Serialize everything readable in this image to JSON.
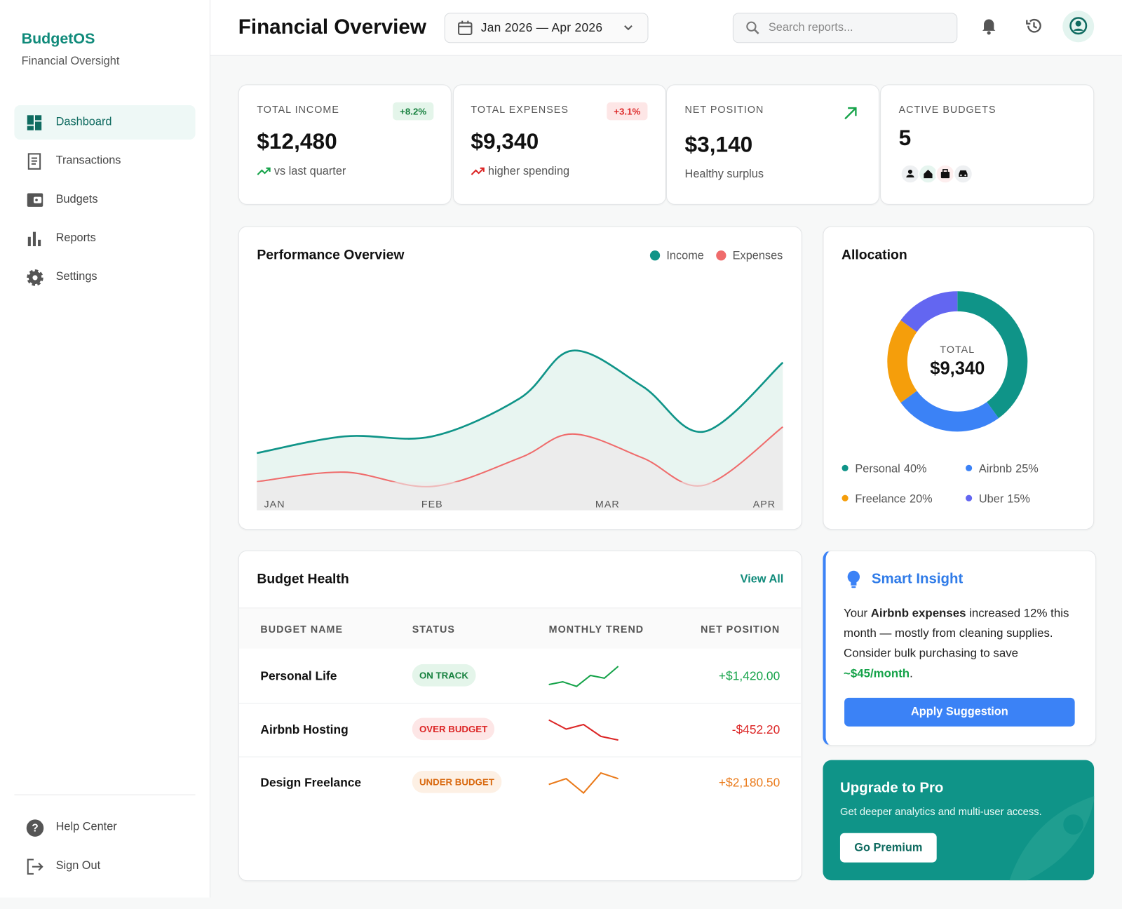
{
  "sidebar": {
    "brand": "BudgetOS",
    "tagline": "Financial Oversight",
    "nav": [
      "Dashboard",
      "Transactions",
      "Budgets",
      "Reports",
      "Settings"
    ],
    "footer_nav": [
      "Help Center",
      "Sign Out"
    ]
  },
  "header": {
    "title": "Financial Overview",
    "date_range": "Jan 2026 — Apr 2026",
    "search_placeholder": "Search reports..."
  },
  "kpis": [
    {
      "label": "TOTAL INCOME",
      "value": "$12,480",
      "badge": "+8.2%",
      "note": "vs last quarter"
    },
    {
      "label": "TOTAL EXPENSES",
      "value": "$9,340",
      "badge": "+3.1%",
      "note": "higher spending"
    },
    {
      "label": "NET POSITION",
      "value": "$3,140",
      "note": "Healthy surplus"
    },
    {
      "label": "ACTIVE BUDGETS",
      "value": "5"
    }
  ],
  "chart_data": [
    {
      "type": "area",
      "title": "Performance Overview",
      "x": [
        0,
        0.5,
        1,
        1.5,
        1.8,
        2.2,
        2.55,
        3
      ],
      "xlim": [
        0,
        3
      ],
      "xticks": [
        {
          "value": 0,
          "label": "JAN"
        },
        {
          "value": 1,
          "label": "FEB"
        },
        {
          "value": 2,
          "label": "MAR"
        },
        {
          "value": 3,
          "label": "APR"
        }
      ],
      "ylim": [
        0,
        100
      ],
      "series": [
        {
          "name": "Income",
          "color": "#0f9488",
          "area_color": "#e8f5f1",
          "values": [
            24,
            31,
            31,
            47,
            67,
            52,
            33,
            62
          ]
        },
        {
          "name": "Expenses",
          "color": "#ef6b6b",
          "area_color": "#ececec",
          "values": [
            12,
            16,
            10,
            22,
            32,
            22,
            10.5,
            35
          ]
        }
      ]
    },
    {
      "type": "donut",
      "title": "Allocation",
      "center_label": "TOTAL",
      "center_value": "$9,340",
      "categories": [
        "Personal",
        "Airbnb",
        "Freelance",
        "Uber"
      ],
      "values": [
        40,
        25,
        20,
        15
      ],
      "value_labels": [
        "40%",
        "25%",
        "20%",
        "15%"
      ],
      "colors": [
        "#0f9488",
        "#3b82f6",
        "#f59e0b",
        "#6366f1"
      ]
    }
  ],
  "budget_health": {
    "title": "Budget Health",
    "link": "View All",
    "columns": [
      "BUDGET NAME",
      "STATUS",
      "MONTHLY TREND",
      "NET POSITION"
    ],
    "rows": [
      {
        "name": "Personal Life",
        "status": "ON TRACK",
        "trend": [
          5,
          8,
          3,
          15,
          12,
          25
        ],
        "net": "+$1,420.00"
      },
      {
        "name": "Airbnb Hosting",
        "status": "OVER BUDGET",
        "trend": [
          30,
          20,
          25,
          12,
          8
        ],
        "net": "-$452.20"
      },
      {
        "name": "Design Freelance",
        "status": "UNDER BUDGET",
        "trend": [
          6,
          8,
          3,
          10,
          8
        ],
        "net": "+$2,180.50"
      }
    ]
  },
  "insight": {
    "title": "Smart Insight",
    "text": [
      "Your ",
      "Airbnb expenses",
      " increased 12% this month — mostly from cleaning supplies. Consider bulk purchasing to save ",
      "~$45/month",
      "."
    ],
    "button": "Apply Suggestion"
  },
  "upgrade": {
    "title": "Upgrade to Pro",
    "text": "Get deeper analytics and multi-user access.",
    "button": "Go Premium"
  }
}
